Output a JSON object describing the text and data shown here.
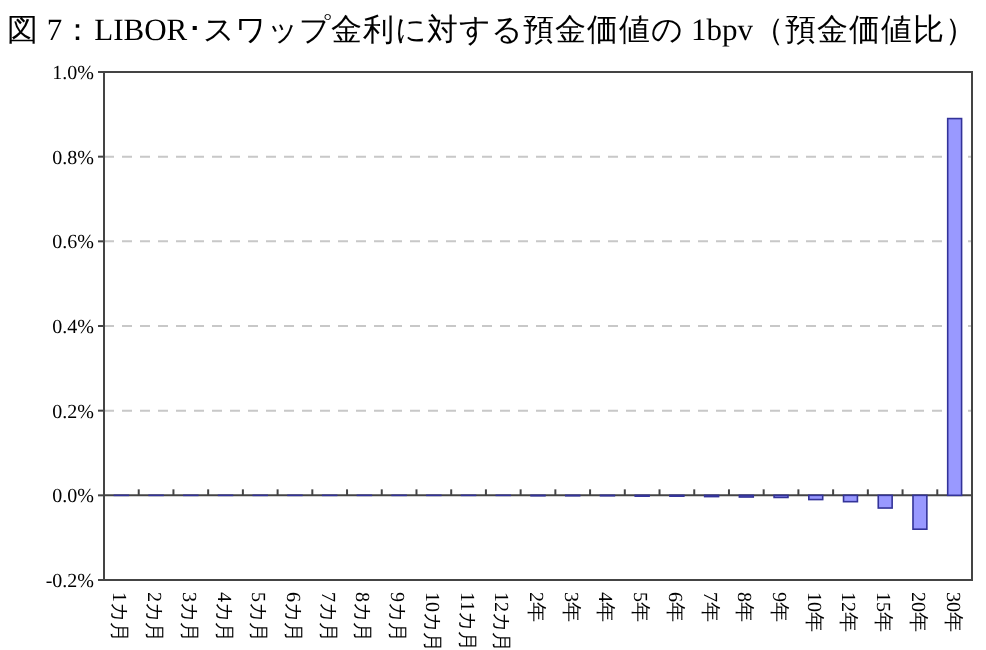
{
  "chart_data": {
    "type": "bar",
    "title": "図 7：LIBOR･スワップ金利に対する預金価値の 1bpv（預金価値比）",
    "categories": [
      "1カ月",
      "2カ月",
      "3カ月",
      "4カ月",
      "5カ月",
      "6カ月",
      "7カ月",
      "8カ月",
      "9カ月",
      "10カ月",
      "11カ月",
      "12カ月",
      "2年",
      "3年",
      "4年",
      "5年",
      "6年",
      "7年",
      "8年",
      "9年",
      "10年",
      "12年",
      "15年",
      "20年",
      "30年"
    ],
    "values": [
      0,
      0,
      0,
      0,
      0,
      0,
      0,
      0,
      0,
      0,
      0,
      0,
      -0.001,
      -0.001,
      -0.001,
      -0.002,
      -0.002,
      -0.003,
      -0.004,
      -0.005,
      -0.01,
      -0.015,
      -0.03,
      -0.08,
      0.89
    ],
    "color": "#9999ff",
    "ylim": [
      -0.2,
      1.0
    ],
    "yticks": [
      {
        "value": -0.2,
        "label": "-0.2%"
      },
      {
        "value": 0,
        "label": "0.0%"
      },
      {
        "value": 0.2,
        "label": "0.2%"
      },
      {
        "value": 0.4,
        "label": "0.4%"
      },
      {
        "value": 0.6,
        "label": "0.6%"
      },
      {
        "value": 0.8,
        "label": "0.8%"
      },
      {
        "value": 1.0,
        "label": "1.0%"
      }
    ],
    "grid": "y"
  }
}
